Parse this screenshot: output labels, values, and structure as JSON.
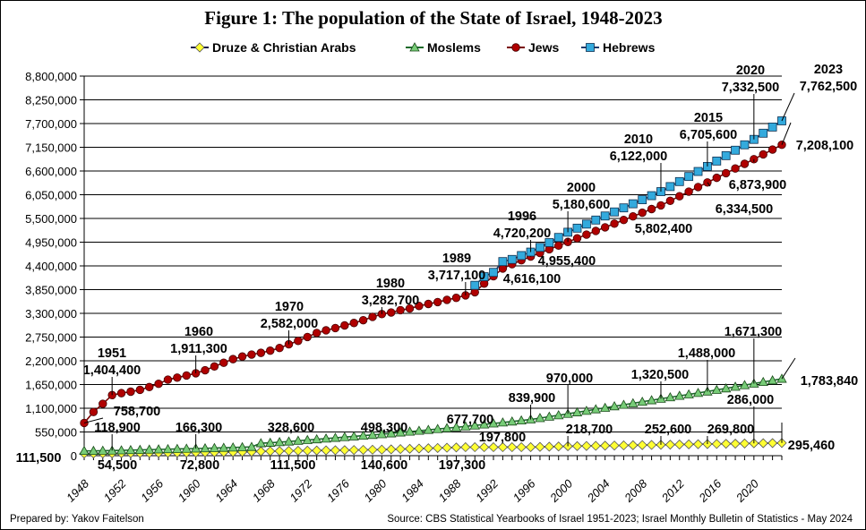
{
  "chart_data": {
    "type": "line",
    "title": "Figure 1:  The population of the State of Israel, 1948-2023",
    "xlabel": "",
    "ylabel": "",
    "x_start": 1948,
    "x_end": 2023,
    "x_tick_labels": [
      "1948",
      "1952",
      "1956",
      "1960",
      "1964",
      "1968",
      "1972",
      "1976",
      "1980",
      "1984",
      "1988",
      "1992",
      "1996",
      "2000",
      "2004",
      "2008",
      "2012",
      "2016",
      "2020"
    ],
    "ylim": [
      0,
      8800000
    ],
    "y_tick_labels": [
      "0",
      "550,000",
      "1,100,000",
      "1,650,000",
      "2,200,000",
      "2,750,000",
      "3,300,000",
      "3,850,000",
      "4,400,000",
      "4,950,000",
      "5,500,000",
      "6,050,000",
      "6,600,000",
      "7,150,000",
      "7,700,000",
      "8,250,000",
      "8,800,000"
    ],
    "grid": "horizontal",
    "legend": "top",
    "series": [
      {
        "name": "Druze & Christian Arabs",
        "color": "#ffff33",
        "line_color": "#1a1a4a",
        "marker": "diamond",
        "start_year": 1948,
        "values_thousands": [
          50,
          51,
          53,
          54.5,
          56.5,
          58.5,
          60.5,
          62.5,
          64.5,
          66.5,
          68.5,
          70.6,
          72.8,
          75,
          77,
          80,
          83,
          86,
          89,
          100,
          104,
          108,
          111.5,
          114.4,
          117.3,
          120.2,
          123.1,
          126,
          128.9,
          131.8,
          134.7,
          137.6,
          140.6,
          146.9,
          153.2,
          159.5,
          165.8,
          172.1,
          178.4,
          184.7,
          191,
          197.3,
          197.4,
          197.4,
          197.5,
          197.6,
          197.6,
          197.7,
          197.8,
          203,
          208.2,
          213.5,
          218.7,
          222.1,
          225.5,
          228.9,
          232.3,
          235.7,
          239.1,
          242.5,
          245.9,
          249.2,
          252.6,
          256,
          259.5,
          262.9,
          266.4,
          269.8,
          273,
          276.3,
          279.5,
          282.8,
          286,
          289.2,
          292.3,
          295.46
        ]
      },
      {
        "name": "Moslems",
        "color": "#77cc77",
        "line_color": "#1a6a2a",
        "marker": "triangle",
        "start_year": 1948,
        "values_thousands": [
          111.5,
          111.5,
          116,
          118.9,
          124.2,
          129.5,
          134.8,
          140.1,
          145.4,
          150.7,
          156,
          161,
          166.3,
          171,
          177,
          183,
          190,
          197,
          204,
          289,
          300,
          314,
          328.6,
          346,
          363,
          380,
          397,
          414,
          431,
          448,
          465,
          481,
          498.3,
          518,
          538,
          558,
          578,
          598,
          618,
          638,
          658,
          677.7,
          701,
          724,
          747,
          770,
          793,
          817,
          839.9,
          872,
          905,
          937,
          970,
          1005,
          1040,
          1075,
          1110,
          1145,
          1180,
          1215,
          1250,
          1285,
          1320.5,
          1354,
          1388,
          1421,
          1455,
          1488,
          1525,
          1561,
          1598,
          1635,
          1671.3,
          1709,
          1746,
          1783.84
        ]
      },
      {
        "name": "Jews",
        "color": "#b00000",
        "line_color": "#7a0000",
        "marker": "circle",
        "start_year": 1948,
        "values_thousands": [
          758.7,
          1013.9,
          1203,
          1404.4,
          1450,
          1484,
          1526,
          1591,
          1667,
          1763,
          1810,
          1859,
          1911.3,
          1981,
          2068,
          2155,
          2239,
          2299,
          2345,
          2384,
          2434,
          2497,
          2582,
          2662,
          2752,
          2845,
          2906,
          2959,
          3020,
          3077,
          3141,
          3218,
          3282.7,
          3320,
          3374,
          3413,
          3471,
          3518,
          3561,
          3613,
          3659,
          3717.1,
          3790,
          3990,
          4160,
          4340,
          4440,
          4530,
          4616.1,
          4700,
          4785,
          4870,
          4955.4,
          5040,
          5125,
          5210,
          5294,
          5379,
          5464,
          5548,
          5633,
          5718,
          5802.4,
          5909,
          6015,
          6122,
          6228,
          6334.5,
          6442,
          6550,
          6658,
          6766,
          6873.9,
          6985,
          7097,
          7208.1
        ]
      },
      {
        "name": "Hebrews",
        "color": "#33aadd",
        "line_color": "#1a3a6a",
        "marker": "square",
        "start_year": 1990,
        "values_thousands": [
          3950,
          4150,
          4250,
          4500,
          4550,
          4640,
          4720.2,
          4830,
          4940,
          5060,
          5180.6,
          5275,
          5369,
          5463,
          5557,
          5651,
          5745,
          5840,
          5934,
          6028,
          6122,
          6239,
          6355,
          6472,
          6589,
          6705.6,
          6831,
          6956,
          7082,
          7207,
          7332.5,
          7476,
          7619,
          7762.5
        ]
      }
    ],
    "annotations": [
      {
        "series": "Jews",
        "year": "",
        "value": "758,700"
      },
      {
        "series": "Jews",
        "year": "1951",
        "value": "1,404,400"
      },
      {
        "series": "Jews",
        "year": "1960",
        "value": "1,911,300"
      },
      {
        "series": "Jews",
        "year": "1970",
        "value": "2,582,000"
      },
      {
        "series": "Jews",
        "year": "1980",
        "value": "3,282,700"
      },
      {
        "series": "Jews",
        "year": "1989",
        "value": "3,717,100"
      },
      {
        "series": "Jews",
        "year": "",
        "value": "4,616,100"
      },
      {
        "series": "Jews",
        "year": "",
        "value": "4,955,400"
      },
      {
        "series": "Jews",
        "year": "",
        "value": "5,802,400"
      },
      {
        "series": "Jews",
        "year": "",
        "value": "6,334,500"
      },
      {
        "series": "Jews",
        "year": "",
        "value": "6,873,900"
      },
      {
        "series": "Jews",
        "year": "",
        "value": "7,208,100"
      },
      {
        "series": "Hebrews",
        "year": "1996",
        "value": "4,720,200"
      },
      {
        "series": "Hebrews",
        "year": "2000",
        "value": "5,180,600"
      },
      {
        "series": "Hebrews",
        "year": "2010",
        "value": "6,122,000"
      },
      {
        "series": "Hebrews",
        "year": "2015",
        "value": "6,705,600"
      },
      {
        "series": "Hebrews",
        "year": "2020",
        "value": "7,332,500"
      },
      {
        "series": "Hebrews",
        "year": "2023",
        "value": "7,762,500"
      },
      {
        "series": "Moslems",
        "year": "",
        "value": "111,500"
      },
      {
        "series": "Moslems",
        "year": "",
        "value": "118,900"
      },
      {
        "series": "Moslems",
        "year": "",
        "value": "166,300"
      },
      {
        "series": "Moslems",
        "year": "",
        "value": "328,600"
      },
      {
        "series": "Moslems",
        "year": "",
        "value": "498,300"
      },
      {
        "series": "Moslems",
        "year": "",
        "value": "677,700"
      },
      {
        "series": "Moslems",
        "year": "",
        "value": "839,900"
      },
      {
        "series": "Moslems",
        "year": "",
        "value": "970,000"
      },
      {
        "series": "Moslems",
        "year": "",
        "value": "1,320,500"
      },
      {
        "series": "Moslems",
        "year": "",
        "value": "1,488,000"
      },
      {
        "series": "Moslems",
        "year": "",
        "value": "1,671,300"
      },
      {
        "series": "Moslems",
        "year": "",
        "value": "1,783,840"
      },
      {
        "series": "Druze & Christian Arabs",
        "year": "",
        "value": "54,500"
      },
      {
        "series": "Druze & Christian Arabs",
        "year": "",
        "value": "72,800"
      },
      {
        "series": "Druze & Christian Arabs",
        "year": "",
        "value": "111,500"
      },
      {
        "series": "Druze & Christian Arabs",
        "year": "",
        "value": "140,600"
      },
      {
        "series": "Druze & Christian Arabs",
        "year": "",
        "value": "197,300"
      },
      {
        "series": "Druze & Christian Arabs",
        "year": "",
        "value": "197,800"
      },
      {
        "series": "Druze & Christian Arabs",
        "year": "",
        "value": "218,700"
      },
      {
        "series": "Druze & Christian Arabs",
        "year": "",
        "value": "252,600"
      },
      {
        "series": "Druze & Christian Arabs",
        "year": "",
        "value": "269,800"
      },
      {
        "series": "Druze & Christian Arabs",
        "year": "",
        "value": "286,000"
      },
      {
        "series": "Druze & Christian Arabs",
        "year": "",
        "value": "295,460"
      }
    ]
  },
  "footer": {
    "prepared_by": "Prepared by: Yakov Faitelson",
    "source": "Source: CBS Statistical Yearbooks of Israel 1951-2023;  Israel Monthly Bulletin of Statistics - May 2024"
  }
}
